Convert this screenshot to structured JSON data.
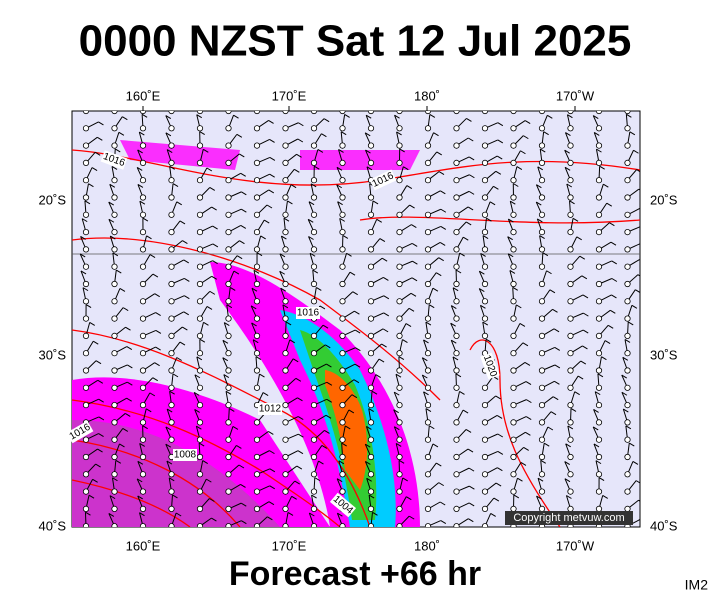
{
  "title": "0000 NZST Sat 12 Jul 2025",
  "map": {
    "longitude_labels": [
      "160˚E",
      "170˚E",
      "180˚",
      "170˚W"
    ],
    "latitude_labels": [
      "20˚S",
      "30˚S",
      "40˚S"
    ],
    "isobar_labels": [
      "1016",
      "1016",
      "1016",
      "1020",
      "1012",
      "1008",
      "1004",
      "1016"
    ],
    "copyright": "Copyright metvuw.com"
  },
  "footer": "Forecast +66 hr",
  "code": "IM2"
}
